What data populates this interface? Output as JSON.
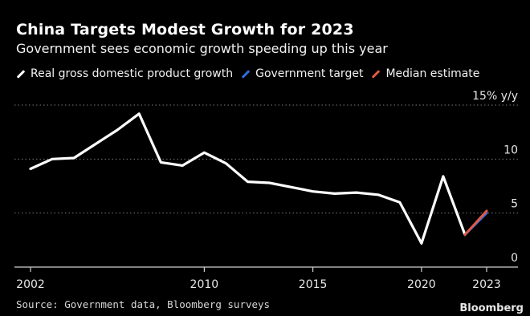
{
  "title": "China Targets Modest Growth for 2023",
  "subtitle": "Government sees economic growth speeding up this year",
  "legend": [
    {
      "label": "Real gross domestic product growth",
      "color": "#ffffff"
    },
    {
      "label": "Government target",
      "color": "#2f6ce0"
    },
    {
      "label": "Median estimate",
      "color": "#e05a45"
    }
  ],
  "source": "Source: Government data, Bloomberg surveys",
  "brand": "Bloomberg",
  "chart_data": {
    "type": "line",
    "title": "China Targets Modest Growth for 2023",
    "ylabel": "15% y/y",
    "ylim": [
      0,
      15
    ],
    "xlim": [
      2002,
      2023
    ],
    "yticks": [
      {
        "value": 15,
        "label": "15% y/y"
      },
      {
        "value": 10,
        "label": "10"
      },
      {
        "value": 5,
        "label": "5"
      },
      {
        "value": 0,
        "label": "0"
      }
    ],
    "xticks": [
      {
        "value": 2002,
        "label": "2002"
      },
      {
        "value": 2010,
        "label": "2010"
      },
      {
        "value": 2015,
        "label": "2015"
      },
      {
        "value": 2020,
        "label": "2020"
      },
      {
        "value": 2023,
        "label": "2023"
      }
    ],
    "grid": true,
    "series": [
      {
        "name": "Real gross domestic product growth",
        "color": "#ffffff",
        "x": [
          2002,
          2003,
          2004,
          2005,
          2006,
          2007,
          2008,
          2009,
          2010,
          2011,
          2012,
          2013,
          2014,
          2015,
          2016,
          2017,
          2018,
          2019,
          2020,
          2021,
          2022
        ],
        "y": [
          9.1,
          10.0,
          10.1,
          11.4,
          12.7,
          14.2,
          9.7,
          9.4,
          10.6,
          9.6,
          7.9,
          7.8,
          7.4,
          7.0,
          6.8,
          6.9,
          6.7,
          6.0,
          2.2,
          8.4,
          3.0
        ]
      },
      {
        "name": "Government target",
        "color": "#2f6ce0",
        "x": [
          2022,
          2023
        ],
        "y": [
          3.0,
          5.0
        ]
      },
      {
        "name": "Median estimate",
        "color": "#e05a45",
        "x": [
          2022,
          2023
        ],
        "y": [
          3.0,
          5.2
        ]
      }
    ]
  }
}
